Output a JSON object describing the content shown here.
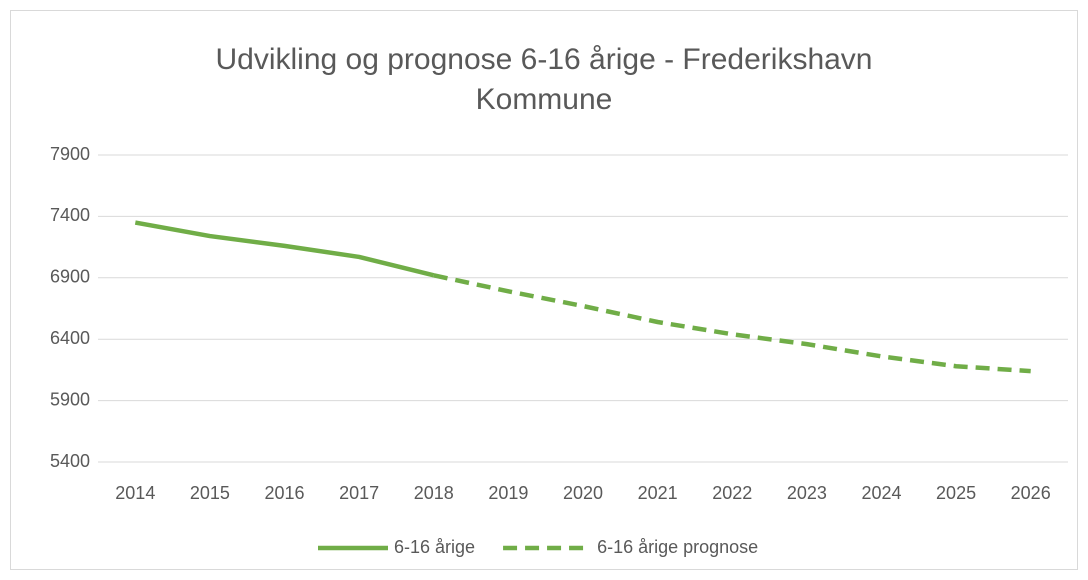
{
  "chart_data": {
    "type": "line",
    "title": "Udvikling og prognose 6-16 årige - Frederikshavn Kommune",
    "categories": [
      "2014",
      "2015",
      "2016",
      "2017",
      "2018",
      "2019",
      "2020",
      "2021",
      "2022",
      "2023",
      "2024",
      "2025",
      "2026"
    ],
    "series": [
      {
        "name": "6-16 årige",
        "color": "#70ad47",
        "line_style": "solid",
        "values": [
          7350,
          7240,
          7160,
          7070,
          6920,
          null,
          null,
          null,
          null,
          null,
          null,
          null,
          null
        ]
      },
      {
        "name": "6-16 årige prognose",
        "color": "#70ad47",
        "line_style": "dashed",
        "values": [
          null,
          null,
          null,
          null,
          6920,
          6790,
          6670,
          6540,
          6440,
          6360,
          6260,
          6180,
          6140
        ]
      }
    ],
    "ylim": [
      5400,
      7900
    ],
    "yticks": [
      5400,
      5900,
      6400,
      6900,
      7400,
      7900
    ],
    "grid": true,
    "legend": "bottom"
  }
}
